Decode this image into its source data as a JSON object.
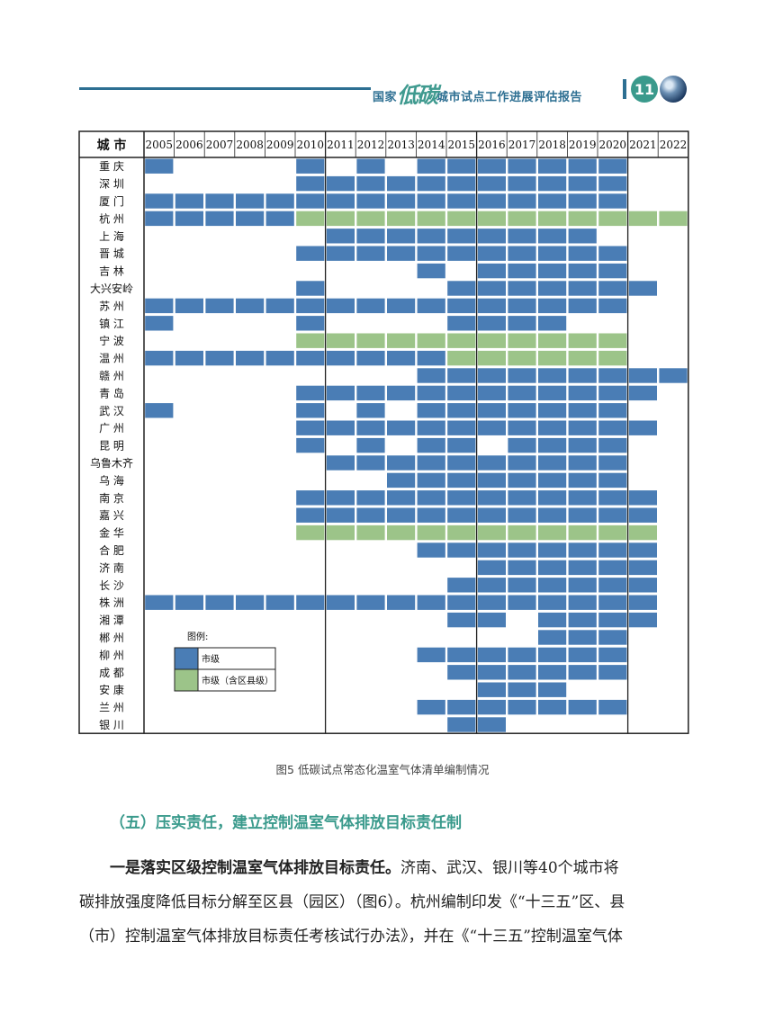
{
  "header": {
    "title_prefix": "国家",
    "title_highlight": "低碳",
    "title_suffix": "城市试点工作进展评估报告",
    "page_number": "11"
  },
  "table": {
    "city_header": "城 市",
    "years": [
      "2005",
      "2006",
      "2007",
      "2008",
      "2009",
      "2010",
      "2011",
      "2012",
      "2013",
      "2014",
      "2015",
      "2016",
      "2017",
      "2018",
      "2019",
      "2020",
      "2021",
      "2022"
    ],
    "cities": [
      "重 庆",
      "深 圳",
      "厦 门",
      "杭 州",
      "上 海",
      "晋 城",
      "吉 林",
      "大兴安岭",
      "苏 州",
      "镇 江",
      "宁 波",
      "温 州",
      "赣 州",
      "青 岛",
      "武 汉",
      "广 州",
      "昆 明",
      "乌鲁木齐",
      "乌 海",
      "南 京",
      "嘉 兴",
      "金 华",
      "合 肥",
      "济 南",
      "长 沙",
      "株 洲",
      "湘 潭",
      "郴 州",
      "柳 州",
      "成 都",
      "安 康",
      "兰 州",
      "银 川"
    ],
    "rows": [
      "B....B.B.BBBBBBB..",
      ".....BBBBBBBBBBB..",
      "BBBBBBBBBBBBBBBB..",
      "BBBBBGGGGGGGGGGGGG",
      "......BBBBBBBBB...",
      ".....BBBBBBBBBBB..",
      ".........B.BBBBB..",
      ".....B....BBBBBBB.",
      "BBBBBBBBBBBBBBBB..",
      "B....B....BBBB....",
      ".....GGGGGGGGGGG..",
      "BBBBBBBBBBGGGGGG..",
      ".........BBBBBBBBB",
      ".....BBBBBBBBBBBB.",
      "B....B.B.BBBBBBB..",
      ".....BBBBBBBBBBBB.",
      ".....B.B.BB.BBBB..",
      "......BBBBBBBBBB..",
      "........BBBBBBBB..",
      ".....BBBBBBBBBBBB.",
      ".....BBBBBBBBBBBB.",
      ".....GGGGGGGGGGGG.",
      ".........BBBBBBBB.",
      "...........BBBBBB.",
      "..........BBBBBBB.",
      "BBBBBBBBBBBBBBBBB.",
      "..........BB.BBBB.",
      ".............BBB..",
      ".........BBBBBBB..",
      "..........BBBBBB..",
      "...........BBB....",
      ".........BBBBBBB..",
      "..........BB......"
    ],
    "legend": {
      "title": "图例:",
      "items": [
        {
          "label": "市级",
          "color": "#4a7db5"
        },
        {
          "label": "市级（含区县级）",
          "color": "#9cc489"
        }
      ]
    },
    "colors": {
      "city_level": "#4a7db5",
      "county_level": "#9cc489"
    }
  },
  "caption": "图5 低碳试点常态化温室气体清单编制情况",
  "section_heading": "（五）压实责任，建立控制温室气体排放目标责任制",
  "paragraph": {
    "lead": "一是落实区级控制温室气体排放目标责任。",
    "line1_rest": "济南、武汉、银川等40个城市将",
    "line2": "碳排放强度降低目标分解至区县（园区）（图6）。杭州编制印发《“十三五”区、县",
    "line3": "（市）控制温室气体排放目标责任考核试行办法》，并在《“十三五”控制温室气体"
  }
}
